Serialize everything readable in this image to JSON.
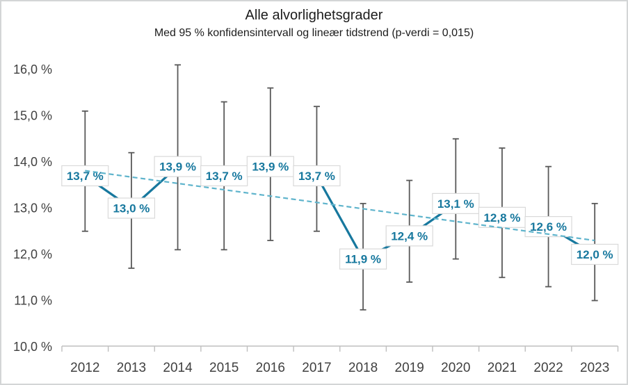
{
  "chart_data": {
    "type": "line",
    "title": "Alle alvorlighetsgrader",
    "subtitle": "Med 95 % konfidensintervall og lineær tidstrend (p-verdi = 0,015)",
    "p_verdi_label": "p-verdi = 0,015",
    "categories": [
      "2012",
      "2013",
      "2014",
      "2015",
      "2016",
      "2017",
      "2018",
      "2019",
      "2020",
      "2021",
      "2022",
      "2023"
    ],
    "series": [
      {
        "name": "Alle alvorlighetsgrader",
        "values": [
          13.7,
          13.0,
          13.9,
          13.7,
          13.9,
          13.7,
          11.9,
          12.4,
          13.1,
          12.8,
          12.6,
          12.0
        ],
        "labels": [
          "13,7 %",
          "13,0 %",
          "13,9 %",
          "13,7 %",
          "13,9 %",
          "13,7 %",
          "11,9 %",
          "12,4 %",
          "13,1 %",
          "12,8 %",
          "12,6 %",
          "12,0 %"
        ],
        "ci_low": [
          12.5,
          11.7,
          12.1,
          12.1,
          12.3,
          12.5,
          10.8,
          11.4,
          11.9,
          11.5,
          11.3,
          11.0
        ],
        "ci_high": [
          15.1,
          14.2,
          16.1,
          15.3,
          15.6,
          15.2,
          13.1,
          13.6,
          14.5,
          14.3,
          13.9,
          13.1
        ]
      }
    ],
    "trend": {
      "name": "lineær tidstrend",
      "start_value": 13.81,
      "end_value": 12.3,
      "style": "dashed"
    },
    "xlabel": "",
    "ylabel": "",
    "ylim": [
      10,
      16
    ],
    "ytick_step": 1,
    "ytick_labels": [
      "10,0 %",
      "11,0 %",
      "12,0 %",
      "13,0 %",
      "14,0 %",
      "15,0 %",
      "16,0 %"
    ],
    "grid": "off",
    "legend": "none",
    "colors": {
      "line": "#17789E",
      "trend": "#5FB4CC",
      "error_bar": "#595959",
      "label_text": "#17789E",
      "label_box_fill": "#ffffff",
      "label_box_border": "#D9D9D9",
      "axis": "#BFBFBF",
      "tick_text": "#404040",
      "title_text": "#1C1C1C"
    }
  }
}
